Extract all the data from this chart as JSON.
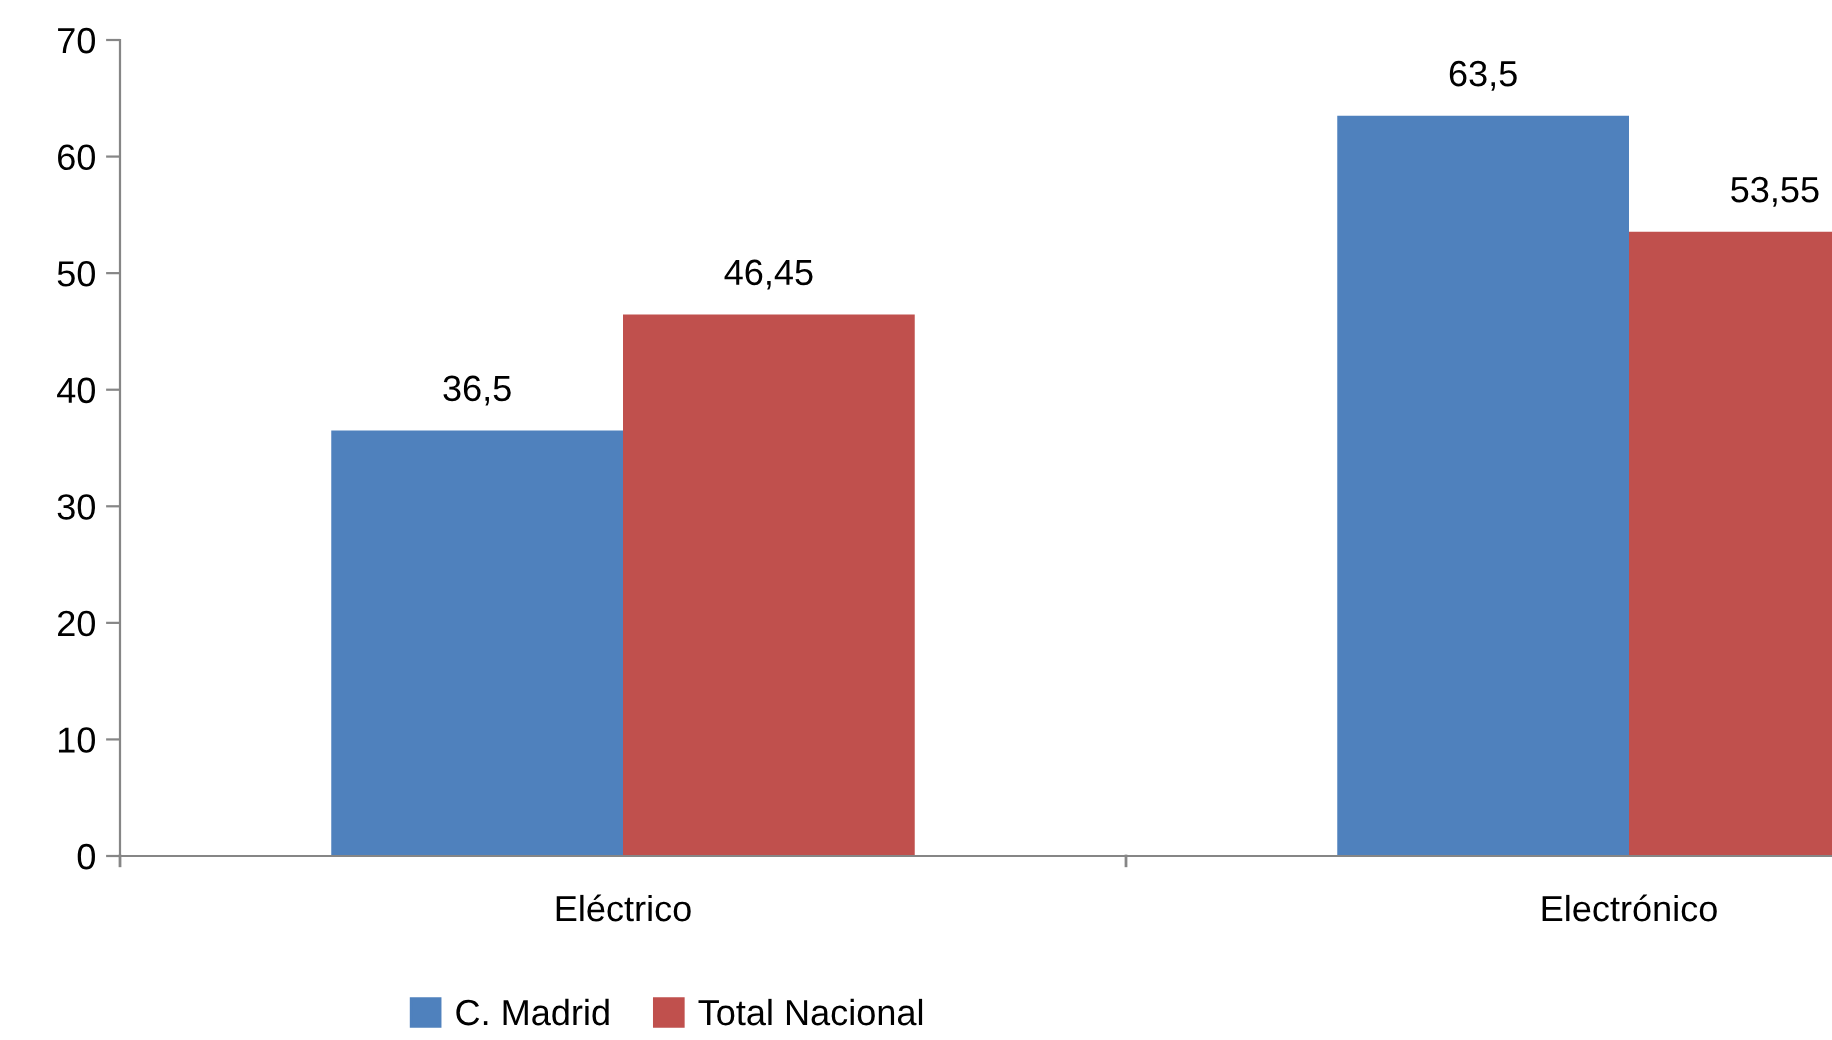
{
  "chart_data": {
    "type": "bar",
    "categories": [
      "Eléctrico",
      "Electrónico"
    ],
    "series": [
      {
        "name": "C. Madrid",
        "color": "#4f81bd",
        "values": [
          36.5,
          63.5
        ],
        "value_labels": [
          "36,5",
          "63,5"
        ]
      },
      {
        "name": "Total Nacional",
        "color": "#c0504d",
        "values": [
          46.45,
          53.55
        ],
        "value_labels": [
          "46,45",
          "53,55"
        ]
      }
    ],
    "ylim": [
      0,
      70
    ],
    "yticks": [
      0,
      10,
      20,
      30,
      40,
      50,
      60,
      70
    ],
    "grid": false,
    "legend": "bottom"
  }
}
